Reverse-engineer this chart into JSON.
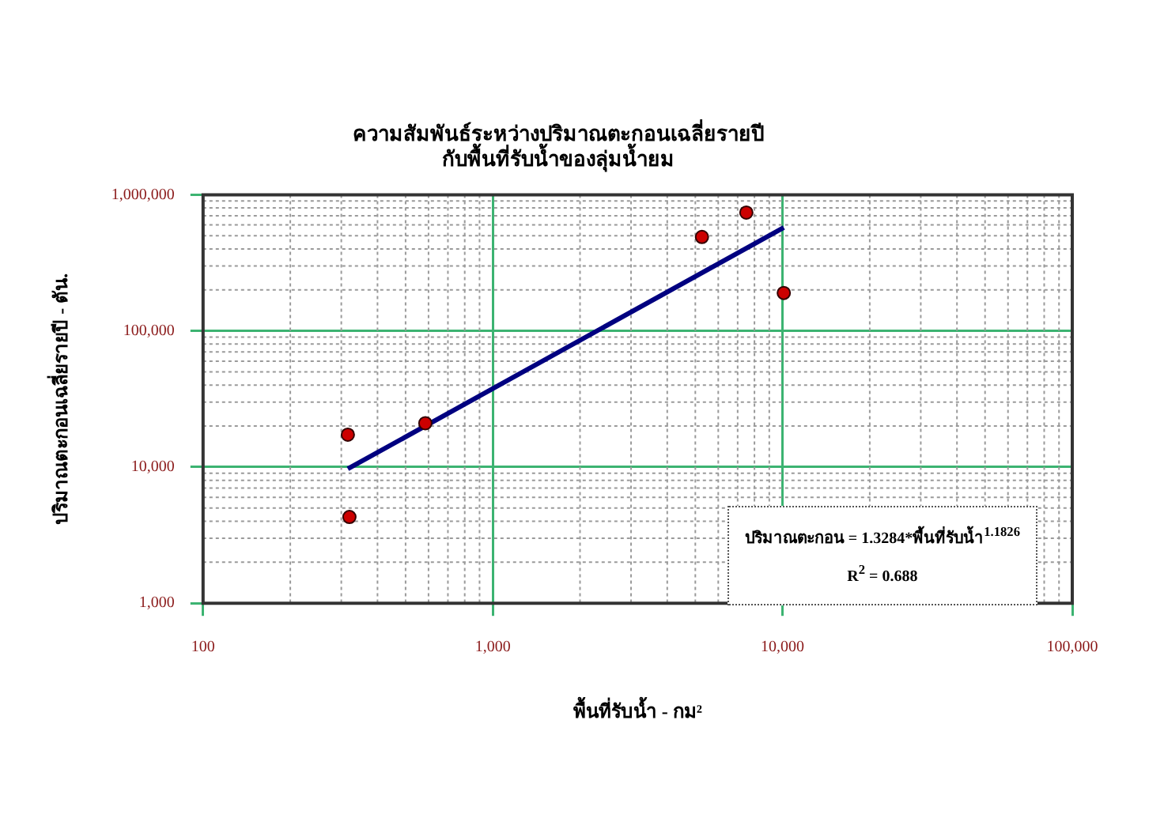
{
  "chart_data": {
    "type": "scatter",
    "title": [
      "ความสัมพันธ์ระหว่างปริมาณตะกอนเฉลี่ยรายปี",
      "กับพื้นที่รับน้ำของลุ่มน้ำยม"
    ],
    "xlabel": "พื้นที่รับน้ำ - กม²",
    "ylabel": "ปริมาณตะกอนเฉลี่ยรายปี - ตัน.",
    "log": "xy",
    "xlim": [
      100,
      100000
    ],
    "ylim": [
      1000,
      1000000
    ],
    "xticks": [
      {
        "value": 100,
        "label": "100"
      },
      {
        "value": 1000,
        "label": "1,000"
      },
      {
        "value": 10000,
        "label": "10,000"
      },
      {
        "value": 100000,
        "label": "100,000"
      }
    ],
    "yticks": [
      {
        "value": 1000,
        "label": "1,000"
      },
      {
        "value": 10000,
        "label": "10,000"
      },
      {
        "value": 100000,
        "label": "100,000"
      },
      {
        "value": 1000000,
        "label": "1,000,000"
      }
    ],
    "grid": true,
    "legend": false,
    "marker": "circle",
    "series": [
      {
        "type": "scatter",
        "color": "#cc0000",
        "x": [
          316,
          320,
          585,
          5270,
          7500,
          10100
        ],
        "values": [
          17300,
          4300,
          21000,
          490000,
          740000,
          190000
        ]
      },
      {
        "type": "line",
        "color": "#000080",
        "x": [
          316,
          10100
        ],
        "values": [
          9700,
          575000
        ],
        "marker": "none",
        "line_style": "solid"
      }
    ],
    "annotations": [
      "ปริมาณตะกอน = 1.3284*พื้นที่รับน้ำ$^{1.1826}$",
      "R$^{2}$ = 0.688"
    ]
  }
}
